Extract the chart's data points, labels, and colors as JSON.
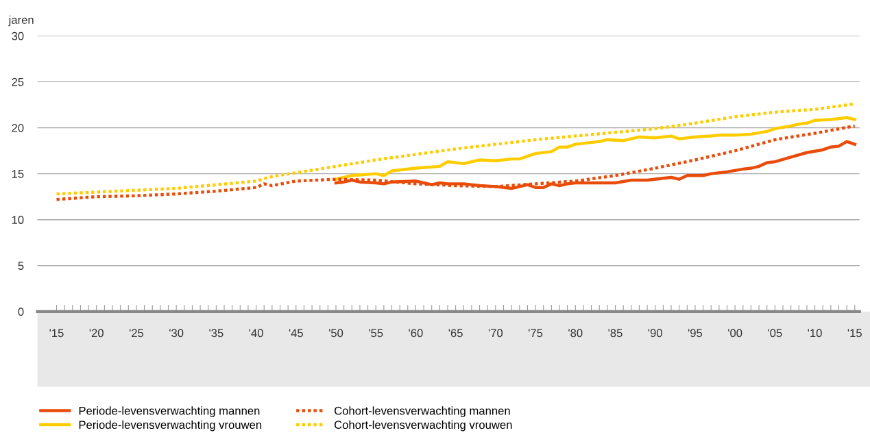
{
  "chart_data": {
    "type": "line",
    "ylabel": "jaren",
    "xlim": [
      1912.6,
      2015.6
    ],
    "ylim": [
      0,
      30
    ],
    "yticks": [
      0,
      5,
      10,
      15,
      20,
      25,
      30
    ],
    "xticks": [
      {
        "value": 1915,
        "label": "'15"
      },
      {
        "value": 1916,
        "label": null
      },
      {
        "value": 1917,
        "label": null
      },
      {
        "value": 1918,
        "label": null
      },
      {
        "value": 1919,
        "label": null
      },
      {
        "value": 1920,
        "label": "'20"
      },
      {
        "value": 1921,
        "label": null
      },
      {
        "value": 1922,
        "label": null
      },
      {
        "value": 1923,
        "label": null
      },
      {
        "value": 1924,
        "label": null
      },
      {
        "value": 1925,
        "label": "'25"
      },
      {
        "value": 1926,
        "label": null
      },
      {
        "value": 1927,
        "label": null
      },
      {
        "value": 1928,
        "label": null
      },
      {
        "value": 1929,
        "label": null
      },
      {
        "value": 1930,
        "label": "'30"
      },
      {
        "value": 1931,
        "label": null
      },
      {
        "value": 1932,
        "label": null
      },
      {
        "value": 1933,
        "label": null
      },
      {
        "value": 1934,
        "label": null
      },
      {
        "value": 1935,
        "label": "'35"
      },
      {
        "value": 1936,
        "label": null
      },
      {
        "value": 1937,
        "label": null
      },
      {
        "value": 1938,
        "label": null
      },
      {
        "value": 1939,
        "label": null
      },
      {
        "value": 1940,
        "label": "'40"
      },
      {
        "value": 1941,
        "label": null
      },
      {
        "value": 1942,
        "label": null
      },
      {
        "value": 1943,
        "label": null
      },
      {
        "value": 1944,
        "label": null
      },
      {
        "value": 1945,
        "label": "'45"
      },
      {
        "value": 1946,
        "label": null
      },
      {
        "value": 1947,
        "label": null
      },
      {
        "value": 1948,
        "label": null
      },
      {
        "value": 1949,
        "label": null
      },
      {
        "value": 1950,
        "label": "'50"
      },
      {
        "value": 1951,
        "label": null
      },
      {
        "value": 1952,
        "label": null
      },
      {
        "value": 1953,
        "label": null
      },
      {
        "value": 1954,
        "label": null
      },
      {
        "value": 1955,
        "label": "'55"
      },
      {
        "value": 1956,
        "label": null
      },
      {
        "value": 1957,
        "label": null
      },
      {
        "value": 1958,
        "label": null
      },
      {
        "value": 1959,
        "label": null
      },
      {
        "value": 1960,
        "label": "'60"
      },
      {
        "value": 1961,
        "label": null
      },
      {
        "value": 1962,
        "label": null
      },
      {
        "value": 1963,
        "label": null
      },
      {
        "value": 1964,
        "label": null
      },
      {
        "value": 1965,
        "label": "'65"
      },
      {
        "value": 1966,
        "label": null
      },
      {
        "value": 1967,
        "label": null
      },
      {
        "value": 1968,
        "label": null
      },
      {
        "value": 1969,
        "label": null
      },
      {
        "value": 1970,
        "label": "'70"
      },
      {
        "value": 1971,
        "label": null
      },
      {
        "value": 1972,
        "label": null
      },
      {
        "value": 1973,
        "label": null
      },
      {
        "value": 1974,
        "label": null
      },
      {
        "value": 1975,
        "label": "'75"
      },
      {
        "value": 1976,
        "label": null
      },
      {
        "value": 1977,
        "label": null
      },
      {
        "value": 1978,
        "label": null
      },
      {
        "value": 1979,
        "label": null
      },
      {
        "value": 1980,
        "label": "'80"
      },
      {
        "value": 1981,
        "label": null
      },
      {
        "value": 1982,
        "label": null
      },
      {
        "value": 1983,
        "label": null
      },
      {
        "value": 1984,
        "label": null
      },
      {
        "value": 1985,
        "label": "'85"
      },
      {
        "value": 1986,
        "label": null
      },
      {
        "value": 1987,
        "label": null
      },
      {
        "value": 1988,
        "label": null
      },
      {
        "value": 1989,
        "label": null
      },
      {
        "value": 1990,
        "label": "'90"
      },
      {
        "value": 1991,
        "label": null
      },
      {
        "value": 1992,
        "label": null
      },
      {
        "value": 1993,
        "label": null
      },
      {
        "value": 1994,
        "label": null
      },
      {
        "value": 1995,
        "label": "'95"
      },
      {
        "value": 1996,
        "label": null
      },
      {
        "value": 1997,
        "label": null
      },
      {
        "value": 1998,
        "label": null
      },
      {
        "value": 1999,
        "label": null
      },
      {
        "value": 2000,
        "label": "'00"
      },
      {
        "value": 2001,
        "label": null
      },
      {
        "value": 2002,
        "label": null
      },
      {
        "value": 2003,
        "label": null
      },
      {
        "value": 2004,
        "label": null
      },
      {
        "value": 2005,
        "label": "'05"
      },
      {
        "value": 2006,
        "label": null
      },
      {
        "value": 2007,
        "label": null
      },
      {
        "value": 2008,
        "label": null
      },
      {
        "value": 2009,
        "label": null
      },
      {
        "value": 2010,
        "label": "'10"
      },
      {
        "value": 2011,
        "label": null
      },
      {
        "value": 2012,
        "label": null
      },
      {
        "value": 2013,
        "label": null
      },
      {
        "value": 2014,
        "label": null
      },
      {
        "value": 2015,
        "label": "'15"
      }
    ],
    "grid": "y",
    "legend": "bottom",
    "series": [
      {
        "name": "Periode-levensverwachting mannen",
        "color": "#e94c0a",
        "line_style": "solid",
        "x": [
          1950,
          1951,
          1952,
          1953,
          1955,
          1956,
          1957,
          1960,
          1961,
          1962,
          1963,
          1964,
          1966,
          1968,
          1970,
          1972,
          1974,
          1975,
          1976,
          1977,
          1978,
          1979,
          1980,
          1985,
          1987,
          1989,
          1991,
          1992,
          1993,
          1994,
          1996,
          1997,
          1999,
          2001,
          2002,
          2003,
          2004,
          2005,
          2007,
          2009,
          2011,
          2012,
          2013,
          2014,
          2015
        ],
        "values": [
          14.0,
          14.1,
          14.3,
          14.1,
          14.0,
          13.9,
          14.1,
          14.2,
          14.0,
          13.8,
          14.0,
          13.9,
          13.9,
          13.7,
          13.6,
          13.4,
          13.8,
          13.5,
          13.5,
          13.9,
          13.7,
          13.9,
          14.0,
          14.0,
          14.3,
          14.3,
          14.5,
          14.6,
          14.4,
          14.8,
          14.8,
          15.0,
          15.2,
          15.5,
          15.6,
          15.8,
          16.2,
          16.3,
          16.8,
          17.3,
          17.6,
          17.9,
          18.0,
          18.5,
          18.2
        ]
      },
      {
        "name": "Periode-levensverwachting vrouwen",
        "color": "#ffcc00",
        "line_style": "solid",
        "x": [
          1950,
          1952,
          1955,
          1956,
          1957,
          1960,
          1963,
          1964,
          1966,
          1968,
          1970,
          1972,
          1973,
          1975,
          1977,
          1978,
          1979,
          1980,
          1983,
          1984,
          1986,
          1988,
          1990,
          1992,
          1993,
          1995,
          1997,
          1998,
          2000,
          2002,
          2004,
          2005,
          2007,
          2008,
          2009,
          2010,
          2012,
          2014,
          2015
        ],
        "values": [
          14.4,
          14.8,
          15.0,
          14.8,
          15.3,
          15.6,
          15.8,
          16.3,
          16.1,
          16.5,
          16.4,
          16.6,
          16.6,
          17.2,
          17.4,
          17.9,
          17.9,
          18.2,
          18.5,
          18.7,
          18.6,
          19.0,
          18.9,
          19.1,
          18.8,
          19.0,
          19.1,
          19.2,
          19.2,
          19.3,
          19.6,
          19.9,
          20.2,
          20.4,
          20.5,
          20.8,
          20.9,
          21.1,
          20.9
        ]
      },
      {
        "name": "Cohort-levensverwachting mannen",
        "color": "#e94c0a",
        "line_style": "dotted",
        "x": [
          1915,
          1920,
          1925,
          1930,
          1935,
          1940,
          1941,
          1942,
          1945,
          1950,
          1955,
          1960,
          1965,
          1970,
          1975,
          1980,
          1985,
          1990,
          1995,
          2000,
          2005,
          2010,
          2015
        ],
        "values": [
          12.2,
          12.5,
          12.6,
          12.8,
          13.1,
          13.5,
          13.9,
          13.7,
          14.2,
          14.4,
          14.3,
          13.9,
          13.7,
          13.6,
          13.9,
          14.2,
          14.8,
          15.6,
          16.5,
          17.5,
          18.7,
          19.4,
          20.2
        ]
      },
      {
        "name": "Cohort-levensverwachting vrouwen",
        "color": "#ffcc00",
        "line_style": "dotted",
        "x": [
          1915,
          1920,
          1925,
          1930,
          1935,
          1940,
          1942,
          1945,
          1950,
          1955,
          1960,
          1965,
          1970,
          1975,
          1980,
          1985,
          1990,
          1995,
          2000,
          2005,
          2010,
          2015
        ],
        "values": [
          12.8,
          13.0,
          13.2,
          13.4,
          13.8,
          14.2,
          14.7,
          15.1,
          15.8,
          16.5,
          17.1,
          17.7,
          18.2,
          18.7,
          19.1,
          19.5,
          19.9,
          20.5,
          21.2,
          21.7,
          22.0,
          22.6
        ]
      }
    ]
  }
}
